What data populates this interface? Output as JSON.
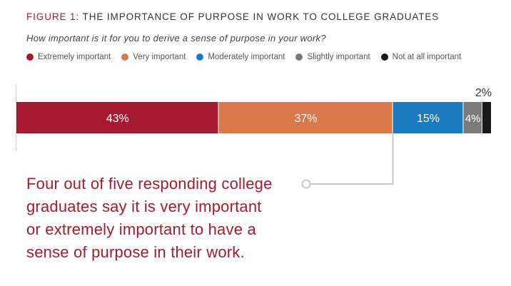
{
  "figure": {
    "number": "FIGURE 1:",
    "title": "THE IMPORTANCE OF PURPOSE IN WORK TO COLLEGE GRADUATES",
    "question": "How important is it for you to derive a sense of purpose in your work?"
  },
  "legend": [
    {
      "label": "Extremely important",
      "color": "#a6192e"
    },
    {
      "label": "Very important",
      "color": "#d9794a"
    },
    {
      "label": "Moderately important",
      "color": "#1a7bc0"
    },
    {
      "label": "Slightly important",
      "color": "#7a7a7a"
    },
    {
      "label": "Not at all important",
      "color": "#1a1a1a"
    }
  ],
  "chart_data": {
    "type": "bar",
    "orientation": "horizontal-stacked",
    "title": "",
    "xlabel": "",
    "ylabel": "",
    "categories": [
      "Extremely important",
      "Very important",
      "Moderately important",
      "Slightly important",
      "Not at all important"
    ],
    "values": [
      43,
      37,
      15,
      4,
      2
    ],
    "labels": [
      "43%",
      "37%",
      "15%",
      "4%",
      "2%"
    ],
    "colors": [
      "#a6192e",
      "#d9794a",
      "#1a7bc0",
      "#7a7a7a",
      "#1a1a1a"
    ],
    "grid": false,
    "legend_position": "top"
  },
  "callout": {
    "lines": [
      "Four out of five responding college",
      "graduates say it is very important",
      "or extremely important to have a",
      "sense of purpose in their work."
    ]
  }
}
